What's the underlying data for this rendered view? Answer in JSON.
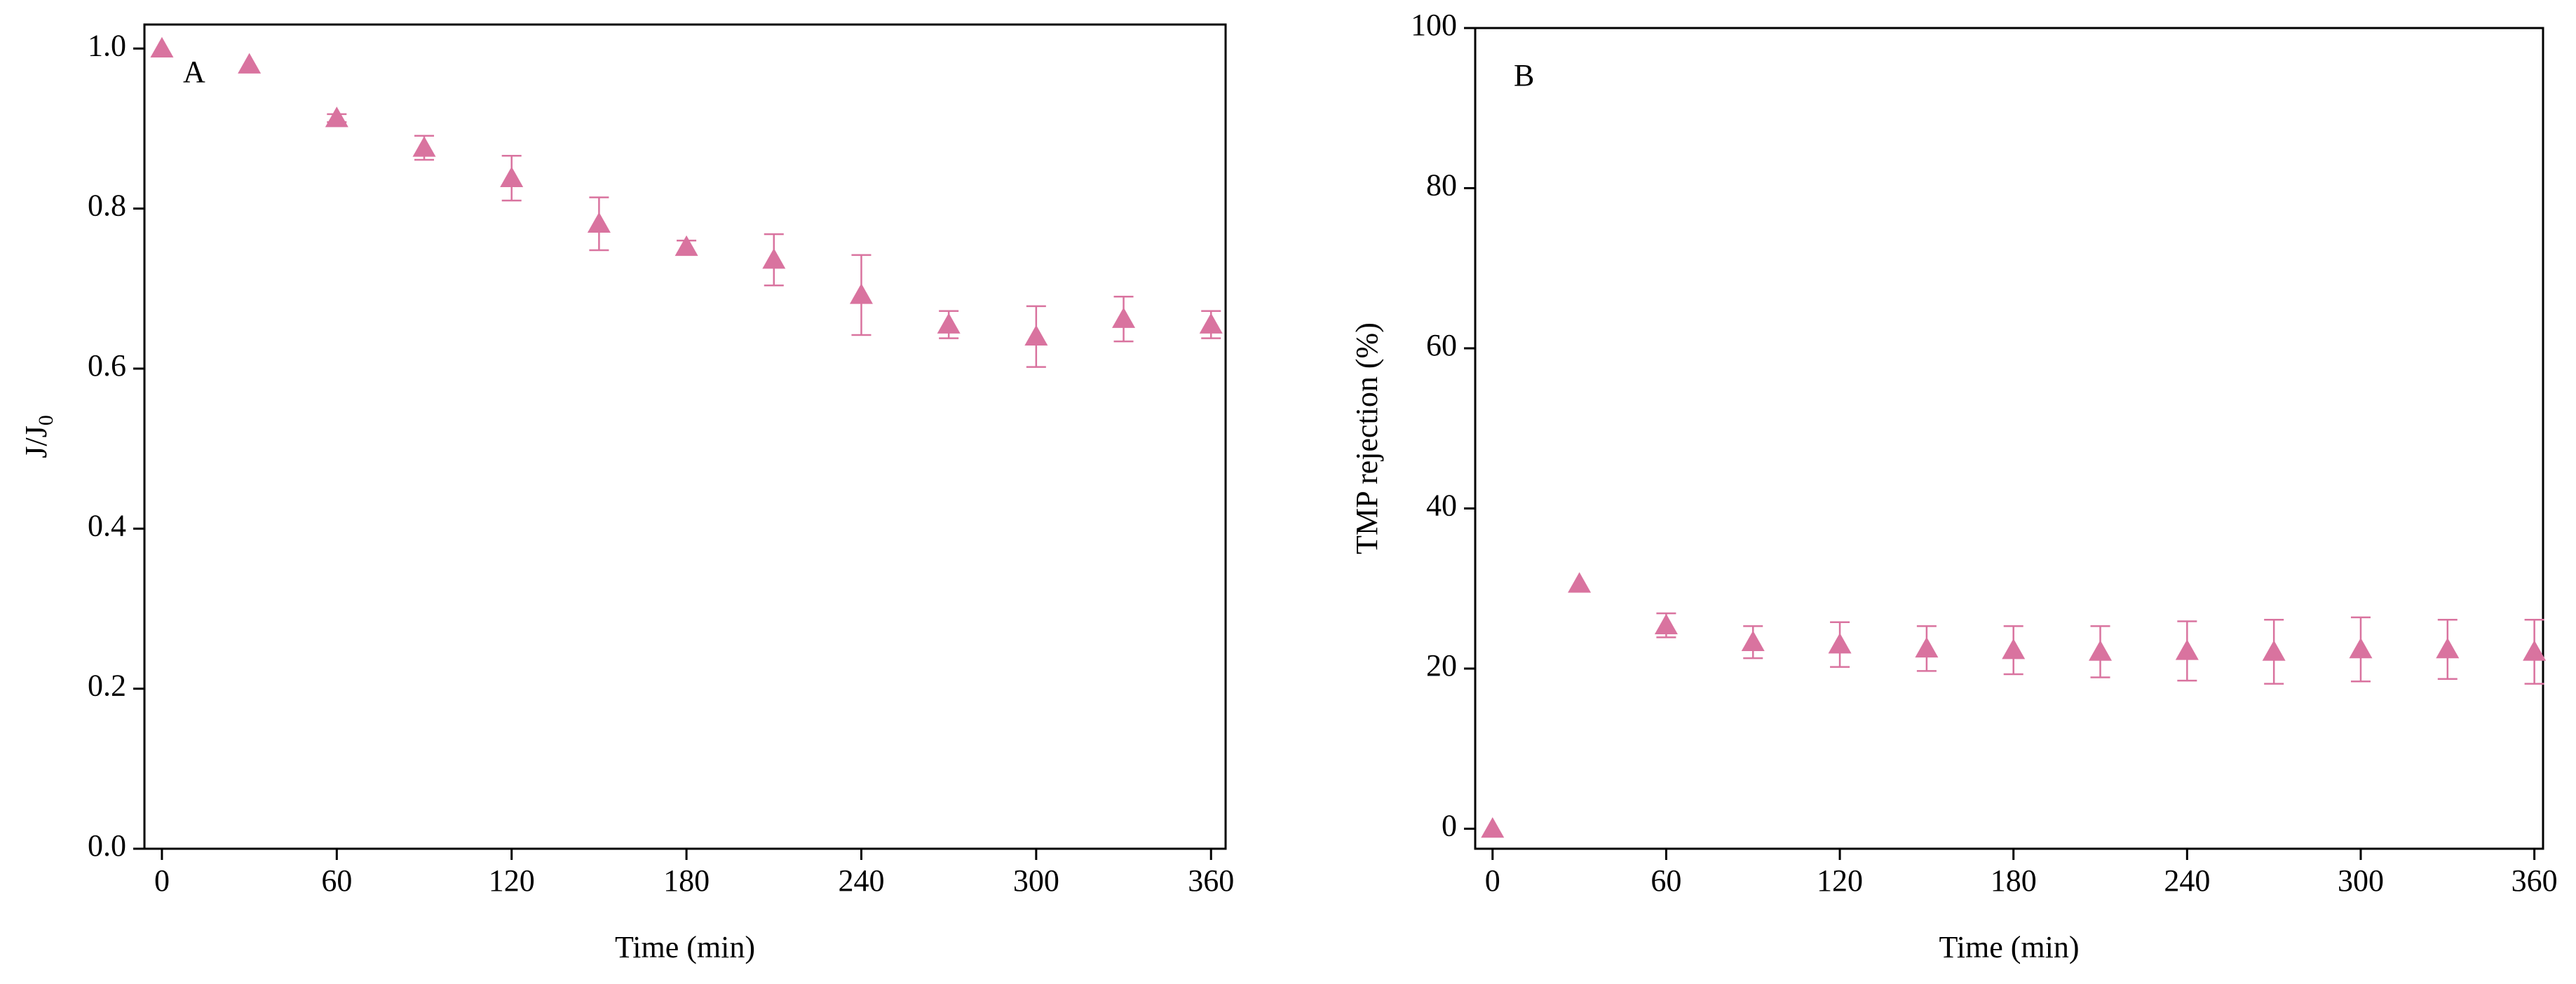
{
  "chart_data": [
    {
      "type": "scatter",
      "annotation": "A",
      "x_label": "Time (min)",
      "y_label": "J/J",
      "y_label_subscript": "0",
      "x": [
        0,
        30,
        60,
        90,
        120,
        150,
        180,
        210,
        240,
        270,
        300,
        330,
        360
      ],
      "values": [
        1.0,
        0.98,
        0.913,
        0.876,
        0.838,
        0.781,
        0.752,
        0.736,
        0.692,
        0.655,
        0.64,
        0.662,
        0.655
      ],
      "errors": [
        0,
        0,
        0.005,
        0.015,
        0.028,
        0.033,
        0.008,
        0.032,
        0.05,
        0.017,
        0.038,
        0.028,
        0.017
      ],
      "color": "#d9739f",
      "marker": "triangle",
      "xlim": [
        -6,
        365
      ],
      "ylim": [
        0,
        1.03
      ],
      "xticks": [
        0,
        60,
        120,
        180,
        240,
        300,
        360
      ],
      "yticks": [
        {
          "value": 0,
          "label": "0.0"
        },
        0.2,
        0.4,
        0.6,
        0.8,
        {
          "value": 1,
          "label": "1.0"
        }
      ]
    },
    {
      "type": "scatter",
      "annotation": "B",
      "x_label": "Time (min)",
      "y_label": "TMP rejection (%)",
      "x": [
        0,
        30,
        60,
        90,
        120,
        150,
        180,
        210,
        240,
        270,
        300,
        330,
        360
      ],
      "values": [
        0,
        30.6,
        25.4,
        23.3,
        23.0,
        22.5,
        22.3,
        22.1,
        22.2,
        22.1,
        22.4,
        22.4,
        22.1
      ],
      "errors": [
        0,
        0,
        1.5,
        2,
        2.8,
        2.8,
        3,
        3.2,
        3.7,
        4,
        4,
        3.7,
        4
      ],
      "color": "#d9739f",
      "marker": "triangle",
      "xlim": [
        -6,
        363
      ],
      "ylim": [
        -2.5,
        100
      ],
      "xticks": [
        0,
        60,
        120,
        180,
        240,
        300,
        360
      ],
      "yticks": [
        0,
        20,
        40,
        60,
        80,
        100
      ]
    }
  ]
}
